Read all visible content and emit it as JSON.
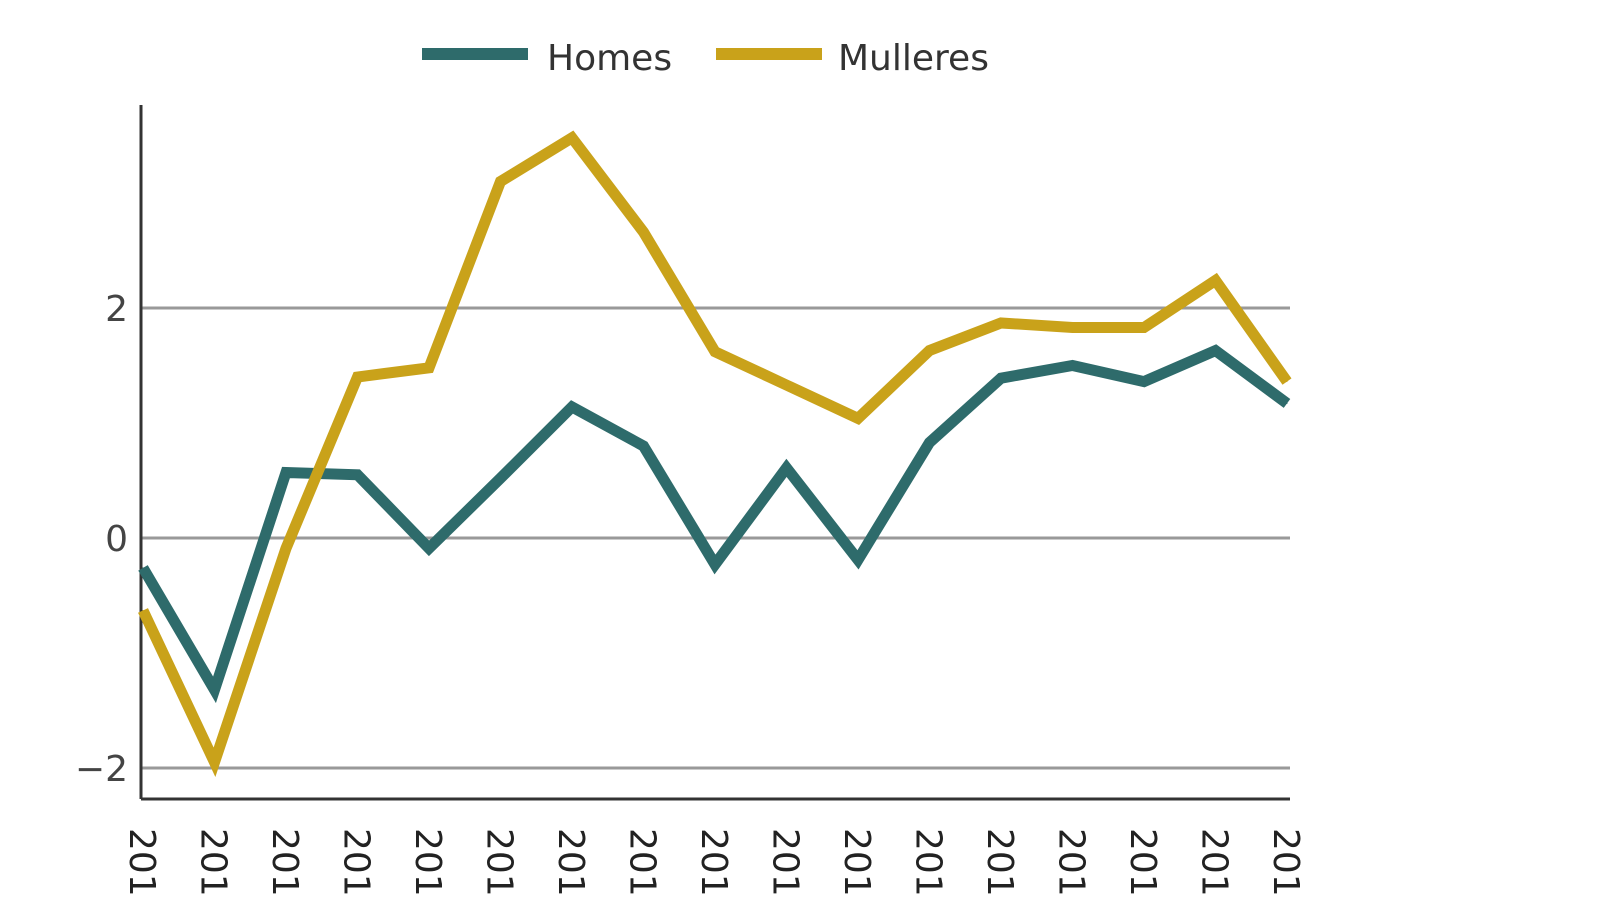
{
  "chart_data": {
    "type": "line",
    "title": "",
    "xlabel": "",
    "ylabel": "",
    "ylim": [
      -2.3,
      3.75
    ],
    "yticks": [
      -2,
      0,
      2
    ],
    "ytick_labels": [
      "−2",
      "0",
      "2"
    ],
    "grid": "horizontal at ticks",
    "legend": "top-center",
    "x_tick_labels": [
      "201",
      "201",
      "201",
      "201",
      "201",
      "201",
      "201",
      "201",
      "201",
      "201",
      "201",
      "201",
      "201",
      "201",
      "201",
      "201",
      "201"
    ],
    "series": [
      {
        "name": "Homes",
        "color": "#2e6b6b",
        "values": [
          -0.26,
          -1.32,
          0.57,
          0.55,
          -0.09,
          0.52,
          1.14,
          0.8,
          -0.23,
          0.61,
          -0.19,
          0.83,
          1.39,
          1.5,
          1.36,
          1.63,
          1.17
        ]
      },
      {
        "name": "Mulleres",
        "color": "#c9a21a",
        "values": [
          -0.63,
          -1.95,
          -0.09,
          1.4,
          1.48,
          3.1,
          3.48,
          2.66,
          1.62,
          1.33,
          1.04,
          1.63,
          1.87,
          1.83,
          1.83,
          2.24,
          1.36
        ]
      }
    ]
  }
}
